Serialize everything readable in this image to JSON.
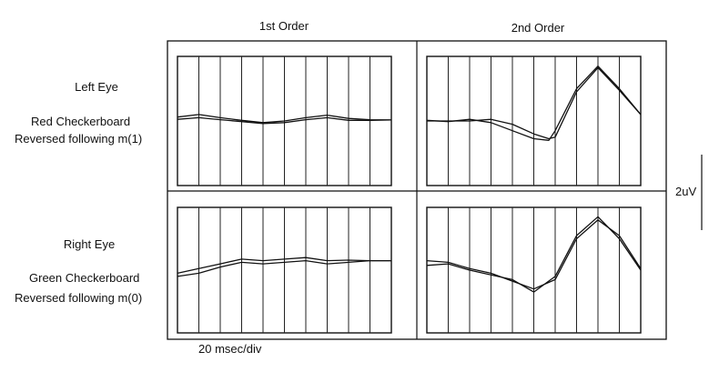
{
  "labels": {
    "col1": "1st Order",
    "col2": "2nd Order",
    "row1_eye": "Left Eye",
    "row1_stim_line1": "Red Checkerboard",
    "row1_stim_line2": "Reversed following m(1)",
    "row2_eye": "Right Eye",
    "row2_stim_line1": "Green Checkerboard",
    "row2_stim_line2": "Reversed following m(0)",
    "time_scale": "20 msec/div",
    "amp_scale": "2uV"
  },
  "chart_data": [
    {
      "type": "line",
      "panel": "top-left",
      "x_unit": "div",
      "xlim": [
        0,
        10
      ],
      "ylim": [
        -2,
        2
      ],
      "grid": "vertical-only",
      "x": [
        0,
        1,
        2,
        3,
        4,
        5,
        6,
        7,
        8,
        9,
        10
      ],
      "series": [
        {
          "values": [
            0.12,
            0.2,
            0.1,
            0.02,
            -0.05,
            0.0,
            0.1,
            0.18,
            0.08,
            0.04,
            0.03
          ]
        },
        {
          "values": [
            0.05,
            0.1,
            0.04,
            -0.02,
            -0.08,
            -0.05,
            0.04,
            0.1,
            0.02,
            0.02,
            0.03
          ]
        }
      ]
    },
    {
      "type": "line",
      "panel": "top-right",
      "x_unit": "div",
      "xlim": [
        0,
        10
      ],
      "ylim": [
        -2,
        2
      ],
      "grid": "vertical-only",
      "x": [
        0,
        1,
        2,
        3,
        4,
        5,
        5.7,
        6,
        7,
        8,
        9,
        10
      ],
      "series": [
        {
          "values": [
            0.02,
            -0.02,
            0.05,
            -0.05,
            -0.3,
            -0.55,
            -0.6,
            -0.3,
            1.0,
            1.7,
            1.0,
            0.2
          ]
        },
        {
          "values": [
            0.0,
            0.0,
            0.0,
            0.05,
            -0.1,
            -0.4,
            -0.55,
            -0.5,
            0.9,
            1.65,
            0.95,
            0.2
          ]
        }
      ]
    },
    {
      "type": "line",
      "panel": "bottom-left",
      "x_unit": "div",
      "xlim": [
        0,
        10
      ],
      "ylim": [
        -2,
        2
      ],
      "grid": "vertical-only",
      "x": [
        0,
        1,
        2,
        3,
        4,
        5,
        6,
        7,
        8,
        9,
        10
      ],
      "series": [
        {
          "values": [
            -0.1,
            0.05,
            0.2,
            0.35,
            0.3,
            0.35,
            0.4,
            0.3,
            0.32,
            0.3,
            0.3
          ]
        },
        {
          "values": [
            -0.2,
            -0.1,
            0.1,
            0.25,
            0.2,
            0.25,
            0.3,
            0.2,
            0.25,
            0.3,
            0.3
          ]
        }
      ]
    },
    {
      "type": "line",
      "panel": "bottom-right",
      "x_unit": "div",
      "xlim": [
        0,
        10
      ],
      "ylim": [
        -2,
        2
      ],
      "grid": "vertical-only",
      "x": [
        0,
        1,
        2,
        3,
        4,
        5,
        6,
        7,
        8,
        9,
        10
      ],
      "series": [
        {
          "values": [
            0.3,
            0.25,
            0.05,
            -0.1,
            -0.35,
            -0.6,
            -0.3,
            1.0,
            1.6,
            1.1,
            0.05
          ]
        },
        {
          "values": [
            0.15,
            0.2,
            0.0,
            -0.15,
            -0.3,
            -0.7,
            -0.2,
            1.1,
            1.7,
            1.0,
            0.0
          ]
        }
      ]
    }
  ]
}
